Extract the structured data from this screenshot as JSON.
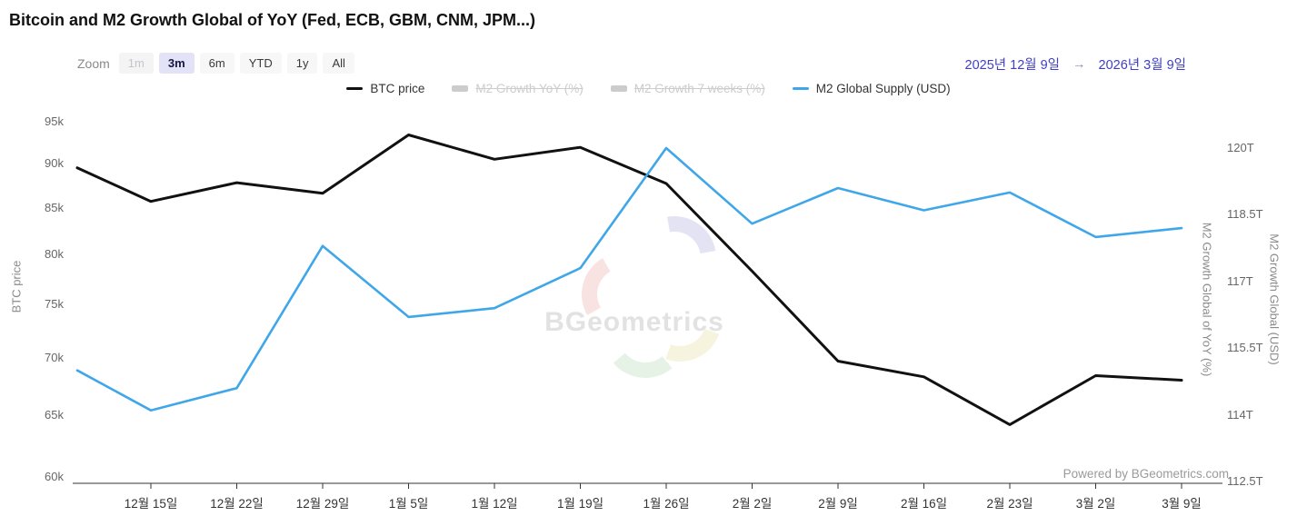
{
  "header": {
    "title": "Bitcoin and M2 Growth Global of YoY (Fed, ECB, GBM, CNM, JPM...)"
  },
  "toolbar": {
    "zoom_label": "Zoom",
    "buttons": [
      {
        "label": "1m",
        "state": "disabled"
      },
      {
        "label": "3m",
        "state": "active"
      },
      {
        "label": "6m",
        "state": "normal"
      },
      {
        "label": "YTD",
        "state": "normal"
      },
      {
        "label": "1y",
        "state": "normal"
      },
      {
        "label": "All",
        "state": "normal"
      }
    ],
    "range": {
      "from": "2025년 12월 9일",
      "arrow": "→",
      "to": "2026년 3월 9일"
    }
  },
  "legend": {
    "items": [
      {
        "label": "BTC price",
        "marker": "line",
        "color": "#111111",
        "disabled": false
      },
      {
        "label": "M2 Growth YoY (%)",
        "marker": "bar",
        "color": "#cccccc",
        "disabled": true
      },
      {
        "label": "M2 Growth 7 weeks (%)",
        "marker": "bar",
        "color": "#cccccc",
        "disabled": true
      },
      {
        "label": "M2 Global Supply (USD)",
        "marker": "line",
        "color": "#3fa7e9",
        "disabled": false
      }
    ]
  },
  "chart_data": {
    "type": "line",
    "title": "Bitcoin and M2 Growth Global of YoY (Fed, ECB, GBM, CNM, JPM...)",
    "categories": [
      "12월 15일",
      "12월 22일",
      "12월 29일",
      "1월 5일",
      "1월 12일",
      "1월 19일",
      "1월 26일",
      "2월 2일",
      "2월 9일",
      "2월 16일",
      "2월 23일",
      "3월 2일",
      "3월 9일"
    ],
    "tick_day_offsets": [
      6,
      13,
      20,
      27,
      34,
      41,
      48,
      55,
      62,
      69,
      76,
      83,
      90
    ],
    "point_day_offsets": [
      0,
      6,
      13,
      20,
      27,
      34,
      41,
      48,
      55,
      62,
      69,
      76,
      83,
      90
    ],
    "point_dates": [
      "12월 9일",
      "12월 15일",
      "12월 22일",
      "12월 29일",
      "1월 5일",
      "1월 12일",
      "1월 19일",
      "1월 26일",
      "2월 2일",
      "2월 9일",
      "2월 16일",
      "2월 23일",
      "3월 2일",
      "3월 9일"
    ],
    "series": [
      {
        "name": "BTC price",
        "axis": "left",
        "color": "#111111",
        "width": 3,
        "unit": "k USD",
        "values": [
          89.5,
          85.7,
          87.8,
          86.6,
          93.4,
          90.5,
          91.9,
          87.7,
          78.3,
          69.7,
          68.3,
          64.2,
          68.4,
          68.0
        ]
      },
      {
        "name": "M2 Global Supply (USD)",
        "axis": "right",
        "color": "#3fa7e9",
        "width": 2.6,
        "unit": "T USD",
        "values": [
          115.0,
          114.1,
          114.6,
          117.8,
          116.2,
          116.4,
          117.3,
          120.0,
          118.3,
          119.1,
          118.6,
          119.0,
          118.0,
          118.2
        ]
      }
    ],
    "left_axis": {
      "title": "BTC price",
      "scale": "log",
      "ticks": [
        "95k",
        "90k",
        "85k",
        "80k",
        "75k",
        "70k",
        "65k",
        "60k"
      ],
      "tick_values": [
        95,
        90,
        85,
        80,
        75,
        70,
        65,
        60
      ],
      "min": 60,
      "max": 95
    },
    "right_axis": {
      "titles": [
        "M2 Growth Global of YoY (%)",
        "M2 Growth Global (USD)"
      ],
      "scale": "linear",
      "ticks": [
        "120T",
        "118.5T",
        "117T",
        "115.5T",
        "114T",
        "112.5T"
      ],
      "tick_values": [
        120,
        118.5,
        117,
        115.5,
        114,
        112.5
      ],
      "min": 112.5,
      "max": 120
    },
    "grid": false,
    "legend_position": "top-center"
  },
  "watermark": {
    "text": "BGeometrics",
    "colors": {
      "blue": "#c9c9ea",
      "red": "#f3c6c6",
      "yellow": "#efe9c0",
      "green": "#cde7cd"
    }
  },
  "footer": {
    "powered_by": "Powered by BGeometrics.com"
  }
}
